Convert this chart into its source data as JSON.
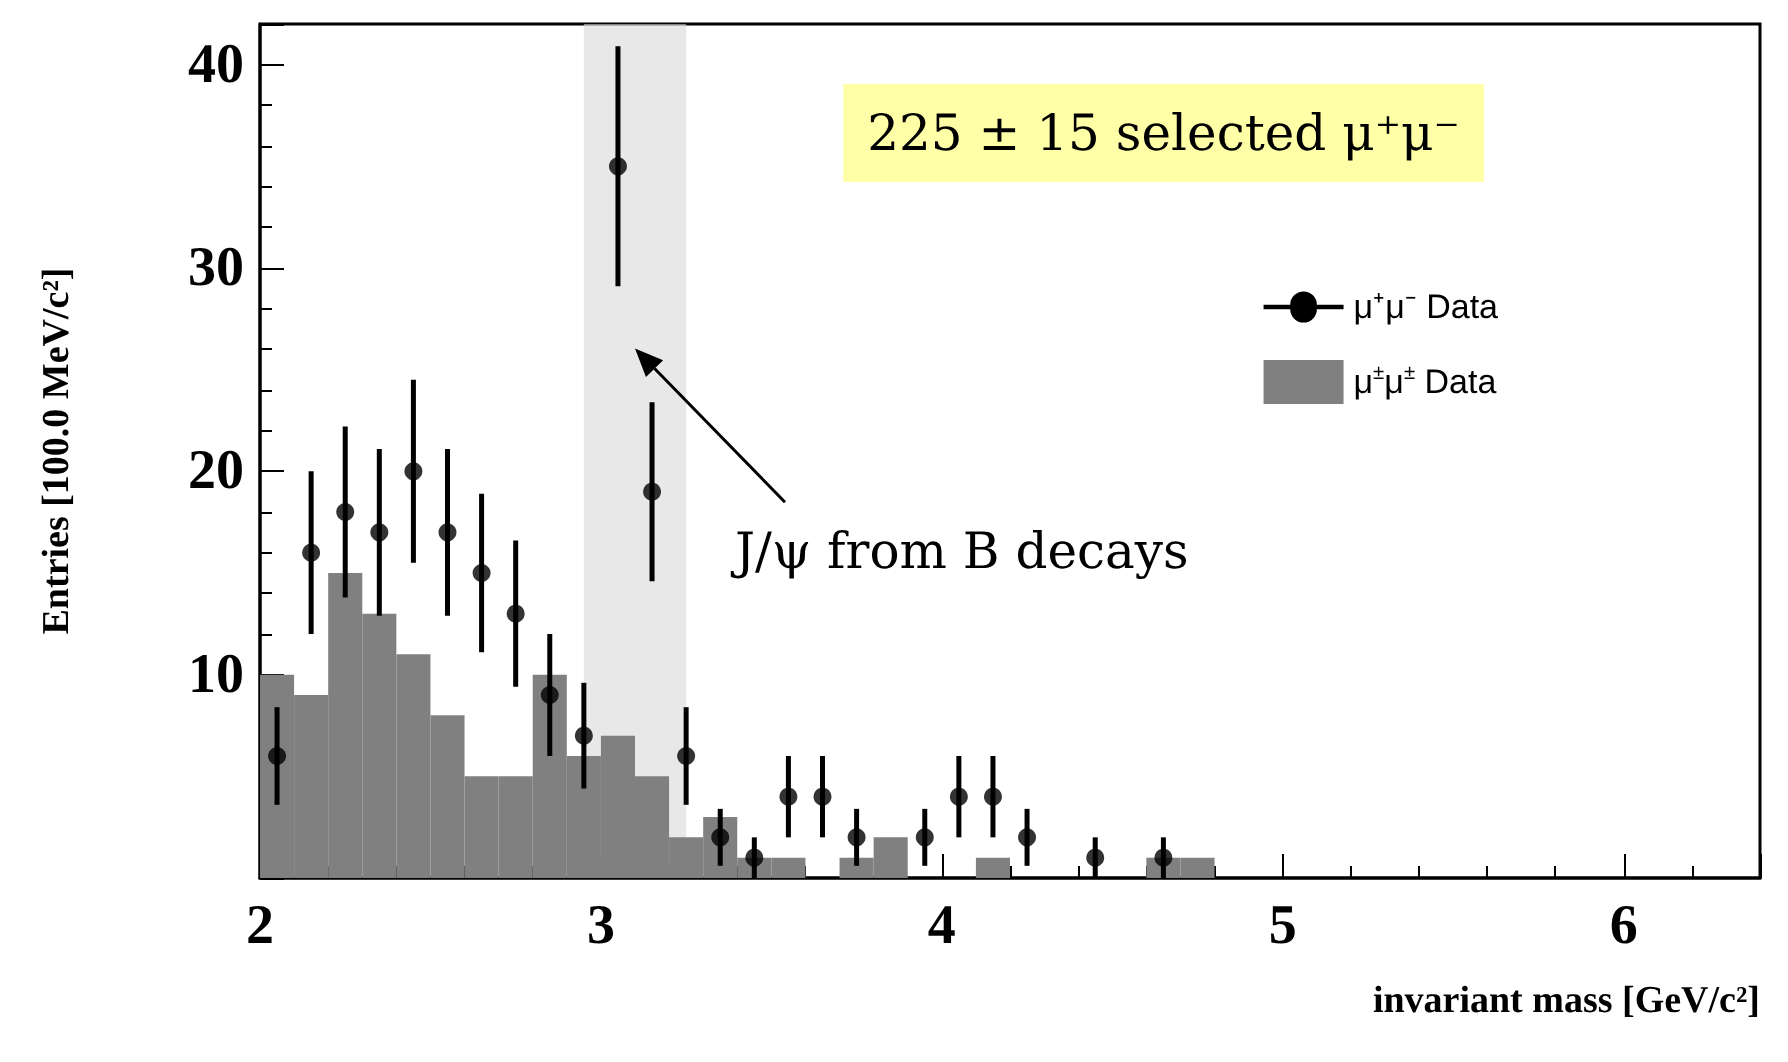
{
  "chart_data": {
    "type": "histogram",
    "xlabel": "invariant mass [GeV/c²]",
    "ylabel": "Entries [100.0 MeV/c²]",
    "xlim": [
      2,
      6.4
    ],
    "xticks": [
      2,
      3,
      4,
      5,
      6
    ],
    "ylim": [
      0,
      42
    ],
    "yticks": [
      10,
      20,
      30,
      40
    ],
    "grid": false,
    "legend": "top right",
    "marker": "circle",
    "series": [
      {
        "name": "μ$^{±}$μ$^{±}$ Data",
        "color": "#808080",
        "bins": [
          2.0,
          2.1,
          2.2,
          2.3,
          2.4,
          2.5,
          2.6,
          2.7,
          2.8,
          2.9,
          3.0,
          3.1,
          3.2,
          3.3,
          3.4,
          3.5,
          3.6,
          3.7,
          3.8,
          3.9,
          4.0,
          4.1,
          4.2,
          4.3,
          4.4,
          4.5,
          4.6,
          4.7,
          4.8
        ],
        "values": [
          10,
          9,
          15,
          13,
          11,
          8,
          5,
          5,
          10,
          6,
          7,
          5,
          2,
          3,
          1,
          1,
          0,
          1,
          2,
          0,
          0,
          1,
          0,
          0,
          0,
          0,
          1,
          1
        ]
      },
      {
        "name": "μ⁺μ⁻ Data",
        "type": "scatter",
        "color": "#000000",
        "x": [
          2.05,
          2.15,
          2.25,
          2.35,
          2.45,
          2.55,
          2.65,
          2.75,
          2.85,
          2.95,
          3.05,
          3.15,
          3.25,
          3.35,
          3.45,
          3.55,
          3.65,
          3.75,
          3.95,
          4.05,
          4.15,
          4.25,
          4.45,
          4.65
        ],
        "values": [
          6,
          16,
          18,
          17,
          20,
          17,
          15,
          13,
          9,
          7,
          35,
          19,
          6,
          2,
          1,
          4,
          4,
          2,
          2,
          4,
          4,
          2,
          1,
          1
        ],
        "errors": [
          2.4,
          4,
          4.2,
          4.1,
          4.5,
          4.1,
          3.9,
          3.6,
          3,
          2.6,
          5.9,
          4.4,
          2.4,
          1.4,
          1,
          2,
          2,
          1.4,
          1.4,
          2,
          2,
          1.4,
          1,
          1
        ]
      }
    ],
    "bands": [
      {
        "axis": "x",
        "from": 2.95,
        "to": 3.25,
        "color": "#d9d9d9"
      }
    ],
    "annotations": [
      "225 ± 15 selected μ⁺μ⁻",
      "J/ψ from B decays"
    ]
  }
}
